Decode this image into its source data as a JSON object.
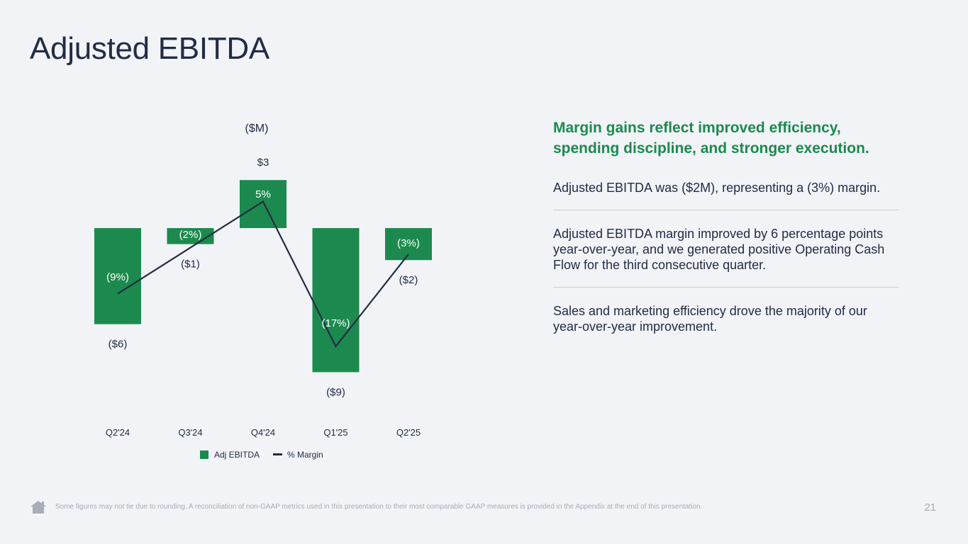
{
  "slide": {
    "title": "Adjusted EBITDA",
    "footnote": "Some figures may not tie due to rounding. A reconciliation of non-GAAP metrics used in this presentation to their most comparable GAAP measures is provided in the Appendix at the end of this presentation.",
    "page_number": "21"
  },
  "right_panel": {
    "headline": "Margin gains reflect improved efficiency, spending discipline, and stronger execution.",
    "points": [
      "Adjusted EBITDA was ($2M), representing a (3%) margin.",
      "Adjusted EBITDA margin improved by 6 percentage points year-over-year, and we generated positive Operating Cash Flow for the third consecutive quarter.",
      "Sales and marketing efficiency drove the majority of our year-over-year improvement."
    ]
  },
  "colors": {
    "bar": "#1c8a4e",
    "line": "#222c44",
    "text": "#222c44",
    "headline": "#1c8a4e",
    "muted": "#a8adb8",
    "background": "#f1f3f7"
  },
  "chart_data": {
    "type": "bar",
    "unit_label": "($M)",
    "categories": [
      "Q2'24",
      "Q3'24",
      "Q4'24",
      "Q1'25",
      "Q2'25"
    ],
    "series": [
      {
        "name": "Adj EBITDA",
        "type": "bar",
        "values": [
          -6,
          -1,
          3,
          -9,
          -2
        ],
        "labels": [
          "($6)",
          "($1)",
          "$3",
          "($9)",
          "($2)"
        ]
      },
      {
        "name": "% Margin",
        "type": "line",
        "values": [
          -9,
          -2,
          5,
          -17,
          -3
        ],
        "labels": [
          "(9%)",
          "(2%)",
          "5%",
          "(17%)",
          "(3%)"
        ]
      }
    ],
    "legend": [
      "Adj EBITDA",
      "% Margin"
    ],
    "legend_position": "bottom",
    "grid": false
  }
}
